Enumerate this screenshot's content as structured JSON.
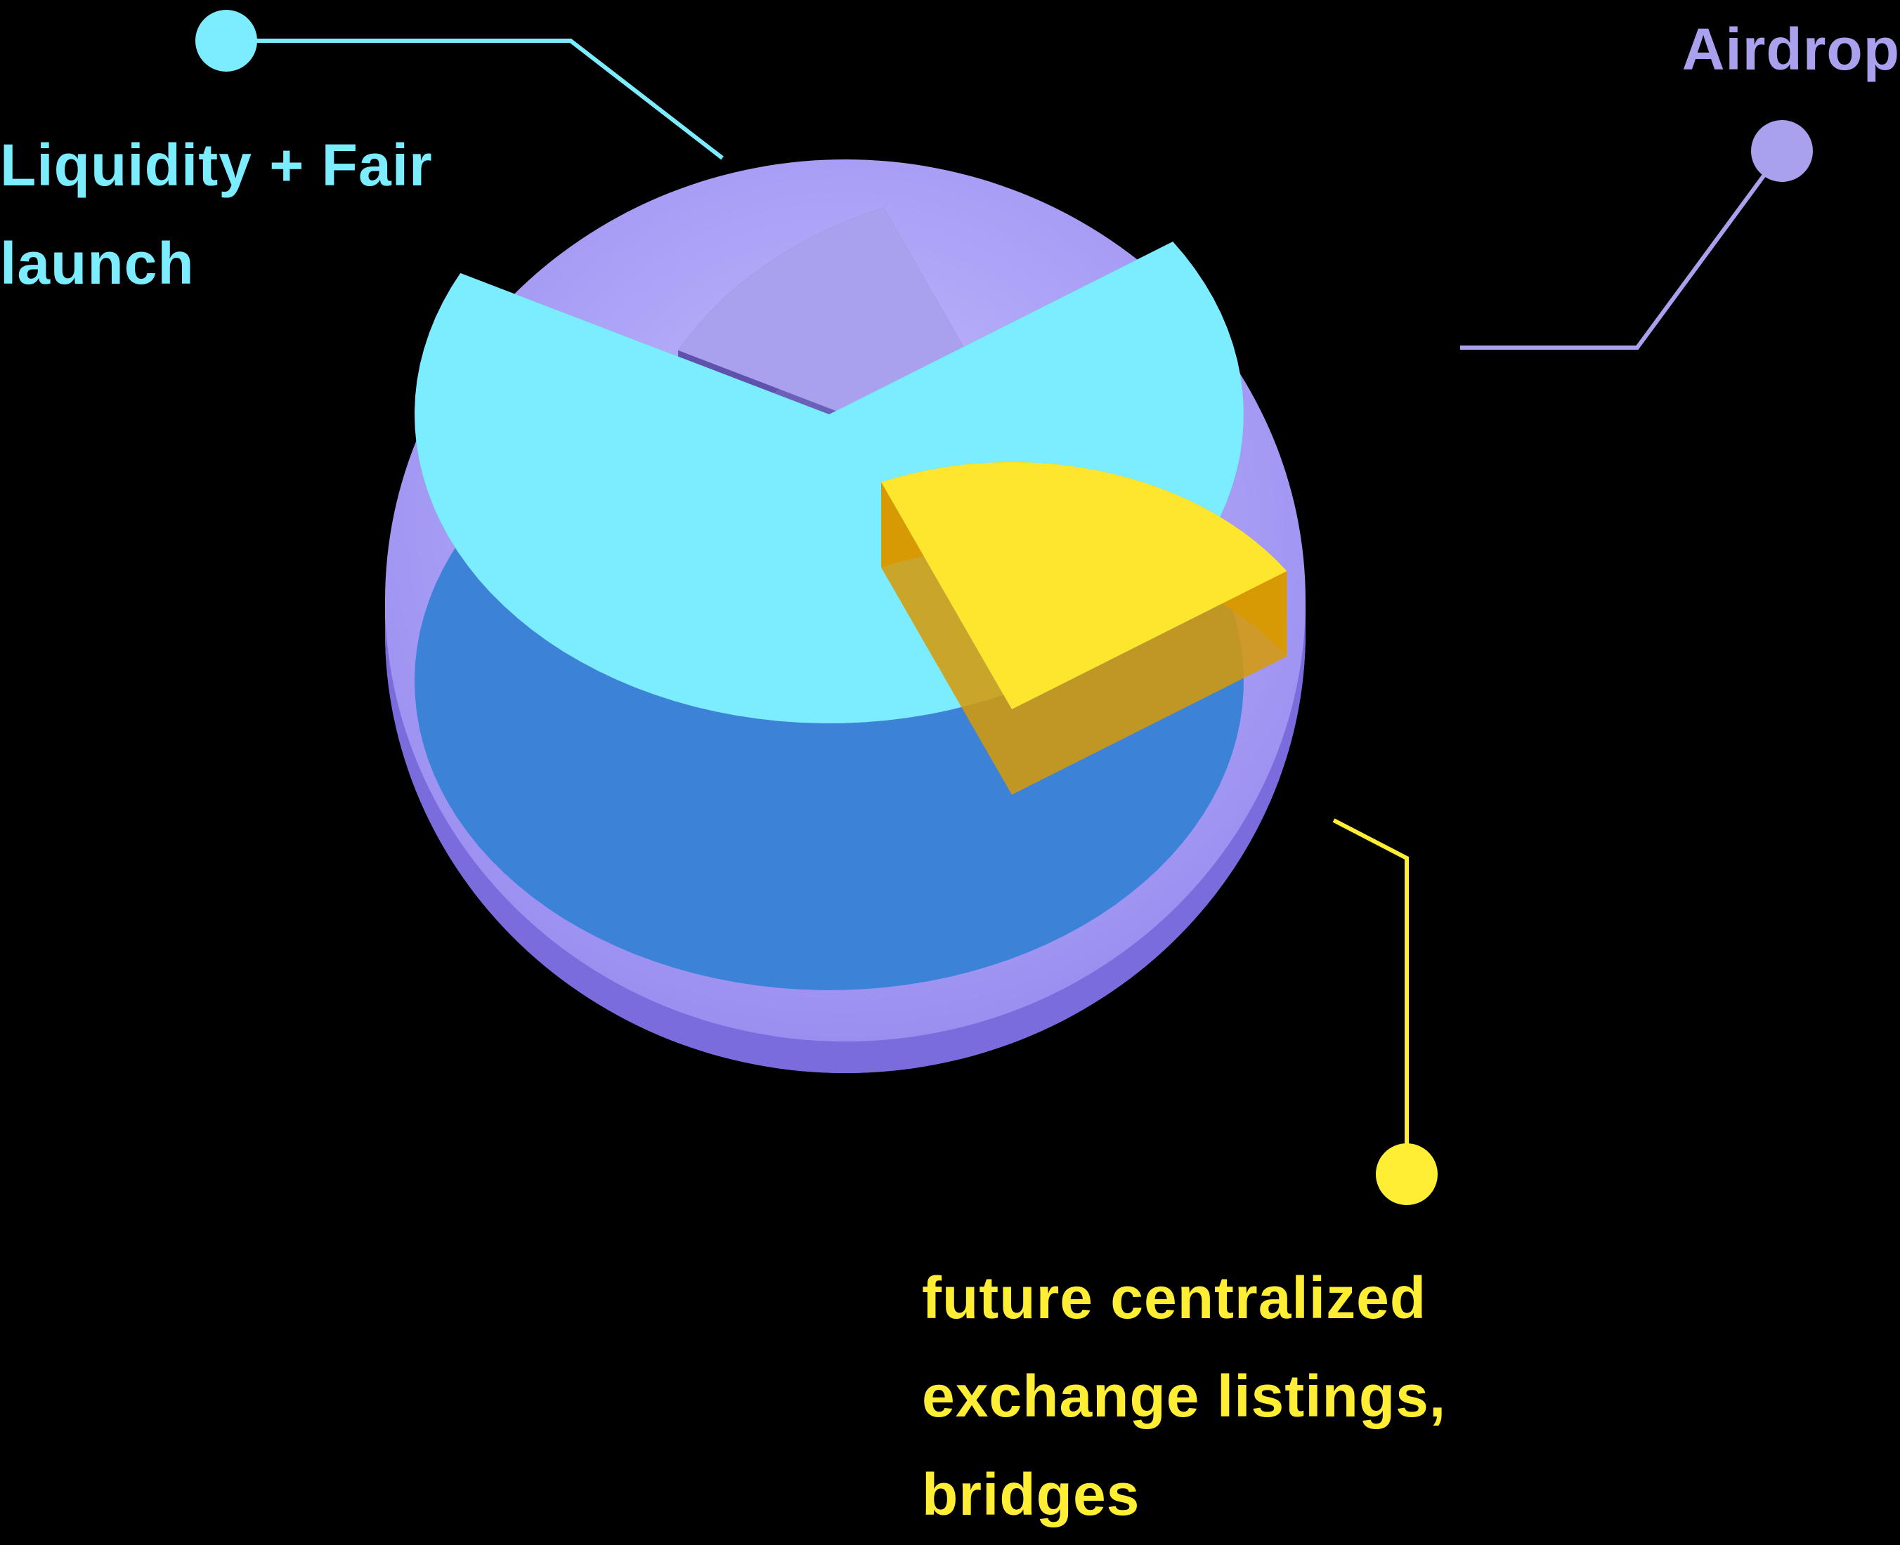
{
  "chart_data": {
    "type": "pie",
    "style": "3d-exploded",
    "series": [
      {
        "name": "Liquidity + Fair launch",
        "label_lines": [
          "Liquidity + Fair",
          "launch"
        ],
        "value": 67,
        "color": "#7cecff",
        "side_color": "#3c82d6"
      },
      {
        "name": "Airdrop",
        "label_lines": [
          "Airdrop"
        ],
        "value": 11,
        "color": "#a9a0ee",
        "side_color": "#5e52ad"
      },
      {
        "name": "future centralized exchange listings, bridges",
        "label_lines": [
          "future centralized",
          "exchange listings,",
          "bridges"
        ],
        "value": 22,
        "color": "#ffe62e",
        "side_color": "#d79a05"
      }
    ],
    "base_color": "#8f83e8",
    "legend": "none",
    "grid": false
  }
}
